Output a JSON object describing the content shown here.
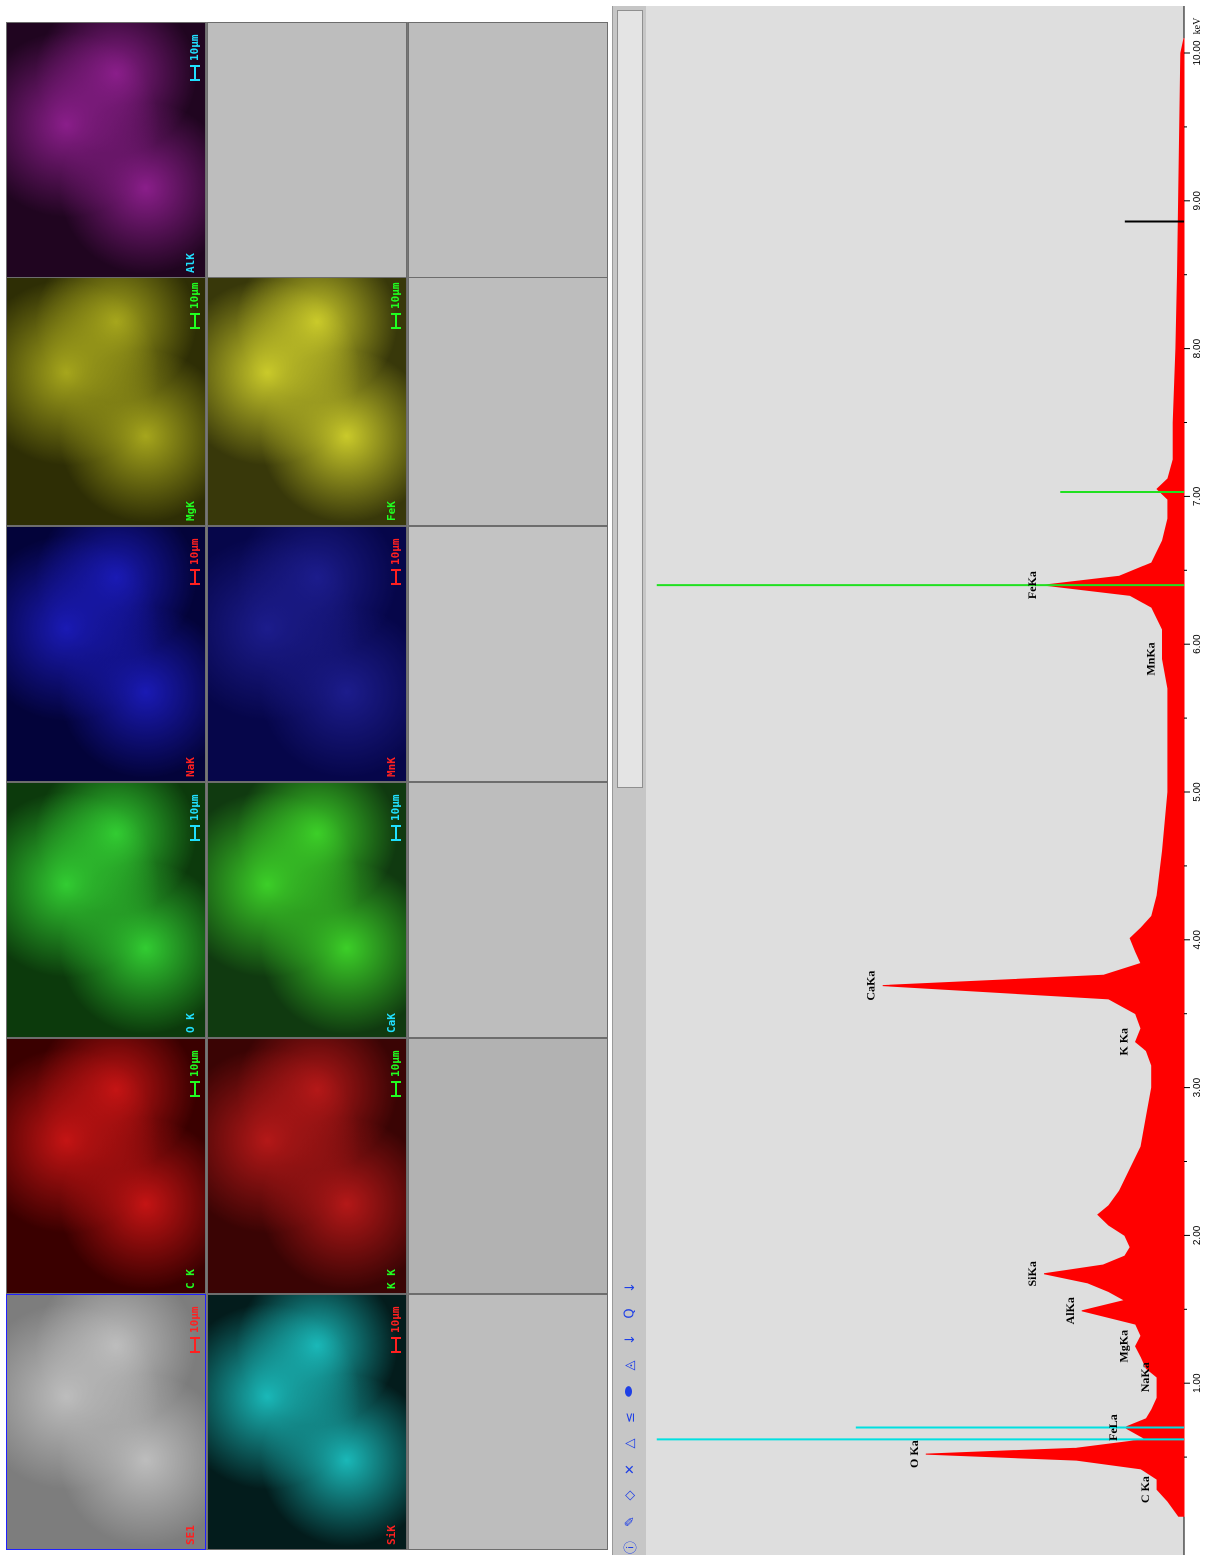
{
  "maps": {
    "scale_label": "10μm",
    "panels": [
      {
        "label": "SE1",
        "label_color": "#ff2020",
        "scale_color": "#ff2020",
        "bg": "#7d7d7d",
        "fill": "#bdbdbd"
      },
      {
        "label": "C K",
        "label_color": "#20ff20",
        "scale_color": "#20ff20",
        "bg": "#3a0000",
        "fill": "#c41414"
      },
      {
        "label": "O K",
        "label_color": "#20e0ff",
        "scale_color": "#20e0ff",
        "bg": "#0c3a0c",
        "fill": "#32cc32"
      },
      {
        "label": "NaK",
        "label_color": "#ff2020",
        "scale_color": "#ff2020",
        "bg": "#03033a",
        "fill": "#1a1ab4"
      },
      {
        "label": "MgK",
        "label_color": "#20ff20",
        "scale_color": "#20ff20",
        "bg": "#2e2e05",
        "fill": "#a6a61c"
      },
      {
        "label": "AlK",
        "label_color": "#20e0ff",
        "scale_color": "#20e0ff",
        "bg": "#200520",
        "fill": "#8a1e8a"
      },
      {
        "label": "SiK",
        "label_color": "#ff2020",
        "scale_color": "#ff2020",
        "bg": "#031c1c",
        "fill": "#1ab8b8"
      },
      {
        "label": "K K",
        "label_color": "#20ff20",
        "scale_color": "#20ff20",
        "bg": "#3a0404",
        "fill": "#b41818"
      },
      {
        "label": "CaK",
        "label_color": "#20e0ff",
        "scale_color": "#20e0ff",
        "bg": "#103a10",
        "fill": "#3ccf28"
      },
      {
        "label": "MnK",
        "label_color": "#ff2020",
        "scale_color": "#ff2020",
        "bg": "#06064a",
        "fill": "#1c1c8c"
      },
      {
        "label": "FeK",
        "label_color": "#20ff20",
        "scale_color": "#20ff20",
        "bg": "#38380a",
        "fill": "#caca2a"
      }
    ]
  },
  "toolbar": {
    "items": [
      {
        "name": "info-icon",
        "glyph": "ⓘ"
      },
      {
        "name": "pen-icon",
        "glyph": "✎"
      },
      {
        "name": "diamond-icon",
        "glyph": "◇"
      },
      {
        "name": "close-icon",
        "glyph": "✕"
      },
      {
        "name": "triangle-icon",
        "glyph": "△"
      },
      {
        "name": "lte-icon",
        "glyph": "≤"
      },
      {
        "name": "ellipse-icon",
        "glyph": "⬬"
      },
      {
        "name": "spectrum-icon",
        "glyph": "◬"
      },
      {
        "name": "down-arrow-icon",
        "glyph": "↓"
      },
      {
        "name": "zoom-icon",
        "glyph": "Q"
      },
      {
        "name": "down-arrow-icon",
        "glyph": "↓"
      }
    ]
  },
  "chart_data": {
    "type": "area",
    "xlabel": "keV",
    "xlim": [
      0,
      10.2
    ],
    "ylim": [
      0,
      1.0
    ],
    "x_ticks": [
      "1.00",
      "2.00",
      "3.00",
      "4.00",
      "5.00",
      "6.00",
      "7.00",
      "8.00",
      "9.00",
      "10.00"
    ],
    "fill_color": "#ff0000",
    "background": "#dedede",
    "peaks": [
      {
        "label": "C Ka",
        "x": 0.28,
        "y": 0.05
      },
      {
        "label": "O Ka",
        "x": 0.52,
        "y": 0.48
      },
      {
        "label": "FeLa",
        "x": 0.7,
        "y": 0.11
      },
      {
        "label": "NaKa",
        "x": 1.04,
        "y": 0.05
      },
      {
        "label": "MgKa",
        "x": 1.25,
        "y": 0.09
      },
      {
        "label": "AlKa",
        "x": 1.49,
        "y": 0.19
      },
      {
        "label": "SiKa",
        "x": 1.74,
        "y": 0.26
      },
      {
        "label": "K Ka",
        "x": 3.31,
        "y": 0.09
      },
      {
        "label": "CaKa",
        "x": 3.69,
        "y": 0.56
      },
      {
        "label": "MnKa",
        "x": 5.9,
        "y": 0.04
      },
      {
        "label": "FeKa",
        "x": 6.4,
        "y": 0.26
      }
    ],
    "series": [
      {
        "x": [
          0.1,
          0.2,
          0.28,
          0.35,
          0.42,
          0.48,
          0.52,
          0.56,
          0.62,
          0.7,
          0.76,
          0.82,
          0.9,
          1.0,
          1.04,
          1.1,
          1.18,
          1.25,
          1.32,
          1.4,
          1.49,
          1.56,
          1.62,
          1.68,
          1.74,
          1.8,
          1.86,
          1.92,
          2.0,
          2.07,
          2.14,
          2.2,
          2.3,
          2.45,
          2.6,
          2.8,
          3.0,
          3.15,
          3.25,
          3.31,
          3.4,
          3.5,
          3.6,
          3.69,
          3.76,
          3.84,
          3.92,
          4.01,
          4.08,
          4.16,
          4.3,
          4.6,
          5.0,
          5.4,
          5.7,
          5.9,
          6.1,
          6.25,
          6.33,
          6.4,
          6.46,
          6.55,
          6.7,
          6.85,
          6.98,
          7.05,
          7.12,
          7.25,
          7.5,
          8.0,
          8.5,
          9.0,
          9.5,
          10.0,
          10.1
        ],
        "y": [
          0.01,
          0.03,
          0.05,
          0.05,
          0.08,
          0.2,
          0.48,
          0.2,
          0.07,
          0.11,
          0.07,
          0.06,
          0.05,
          0.05,
          0.05,
          0.07,
          0.08,
          0.09,
          0.08,
          0.09,
          0.19,
          0.11,
          0.14,
          0.18,
          0.26,
          0.15,
          0.11,
          0.1,
          0.11,
          0.14,
          0.16,
          0.14,
          0.12,
          0.1,
          0.08,
          0.07,
          0.06,
          0.06,
          0.07,
          0.09,
          0.08,
          0.09,
          0.14,
          0.56,
          0.15,
          0.08,
          0.09,
          0.1,
          0.08,
          0.06,
          0.05,
          0.04,
          0.03,
          0.03,
          0.03,
          0.04,
          0.04,
          0.06,
          0.1,
          0.26,
          0.12,
          0.06,
          0.04,
          0.03,
          0.03,
          0.05,
          0.03,
          0.02,
          0.02,
          0.015,
          0.012,
          0.01,
          0.008,
          0.006,
          0.0
        ]
      }
    ],
    "markers": [
      {
        "x": 0.62,
        "height": 0.98,
        "color": "#00e0e0"
      },
      {
        "x": 0.7,
        "height": 0.61,
        "color": "#00e0e0"
      },
      {
        "x": 6.4,
        "height": 0.98,
        "color": "#20e020"
      },
      {
        "x": 7.03,
        "height": 0.23,
        "color": "#20e020"
      },
      {
        "x": 8.86,
        "height": 0.11,
        "color": "#000000"
      }
    ]
  }
}
